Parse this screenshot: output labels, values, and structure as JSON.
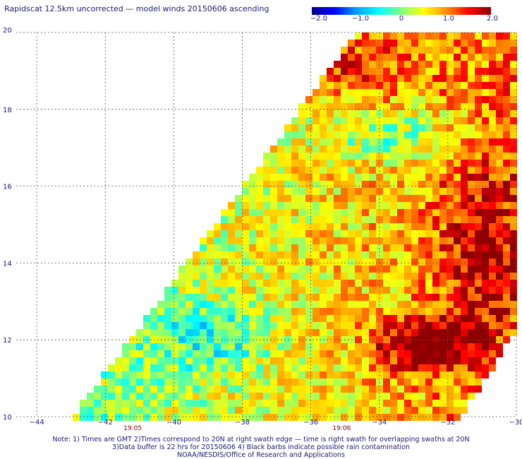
{
  "title": "Rapidscat 12.5km uncorrected — model winds 20150606 ascending",
  "colorbar": {
    "labels": [
      "−2.0",
      "−1.0",
      "0",
      "1.0",
      "2.0"
    ],
    "stops": [
      "#00008c",
      "#0000ff",
      "#00a0ff",
      "#00ffff",
      "#7fff7f",
      "#ffff00",
      "#ff9000",
      "#ff0000",
      "#8c0000"
    ]
  },
  "axes": {
    "lon_labels": [
      "−44",
      "−42",
      "−40",
      "−38",
      "−36",
      "−34",
      "−32",
      "−30"
    ],
    "lat_labels": [
      "10",
      "12",
      "14",
      "16",
      "18",
      "20"
    ]
  },
  "times": [
    "19:05",
    "19:06"
  ],
  "notes": [
    "Note: 1) Times are GMT 2)Times correspond to 20N at right swath edge — time is right swath for overlapping swaths at 20N",
    "3)Data buffer is 22 hrs for 20150606 4) Black barbs indicate possible rain contamination",
    "NOAA/NESDIS/Office of Research and Applications"
  ]
}
